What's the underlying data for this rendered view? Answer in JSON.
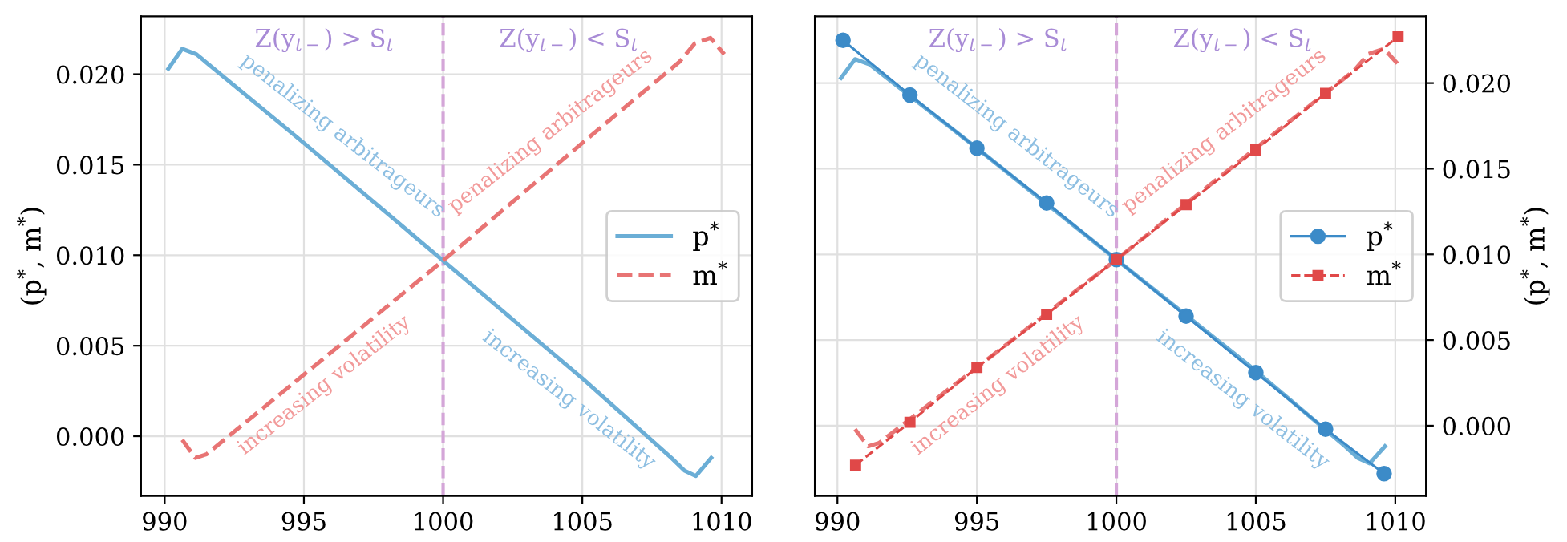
{
  "chart_data": [
    {
      "type": "line",
      "ylabel": "(p$^{*}$, m$^{*}$)",
      "xlim": [
        989.15,
        1011.1
      ],
      "ylim": [
        -0.0033,
        0.0232
      ],
      "xticks": [
        990,
        995,
        1000,
        1005,
        1010
      ],
      "yticks": [
        {
          "value": 0.0,
          "label": "0.000"
        },
        {
          "value": 0.005,
          "label": "0.005"
        },
        {
          "value": 0.01,
          "label": "0.010"
        },
        {
          "value": 0.015,
          "label": "0.015"
        },
        {
          "value": 0.02,
          "label": "0.020"
        }
      ],
      "grid": true,
      "legend": "right",
      "series": [
        {
          "name": "p$^{*}$",
          "color": "#6baed6",
          "line_style": "solid",
          "x": [
            990.13,
            990.63,
            991.14,
            995,
            1000,
            1005,
            1008.2,
            1008.67,
            1009.08,
            1009.63
          ],
          "values": [
            0.0203,
            0.0214,
            0.0211,
            0.0162,
            0.0097,
            0.0032,
            -0.0012,
            -0.0019,
            -0.0022,
            -0.0012
          ]
        },
        {
          "name": "m$^{*}$",
          "color": "#e87474",
          "line_style": "dashed",
          "x": [
            990.63,
            991.1,
            991.5,
            995,
            1000,
            1005,
            1008.5,
            1009.04,
            1009.6,
            1010.1
          ],
          "values": [
            -0.0002,
            -0.0012,
            -0.001,
            0.0034,
            0.0097,
            0.0162,
            0.0207,
            0.0217,
            0.022,
            0.0211
          ]
        }
      ],
      "ref_lines": [
        {
          "axis": "x",
          "value": 1000,
          "color": "#d4a6d8",
          "line_style": "dashed"
        }
      ],
      "annotations": [
        "Z(y$_{t−}$) > S$_{t}$",
        "Z(y$_{t−}$) < S$_{t}$",
        "penalizing arbitrageurs",
        "penalizing arbitrageurs",
        "increasing volatility",
        "increasing volatility"
      ]
    },
    {
      "type": "line",
      "ylabel": "(p$^{*}$, m$^{*}$)",
      "xlim": [
        989.19,
        1011.1
      ],
      "ylim": [
        -0.0041,
        0.0239
      ],
      "xticks": [
        990,
        995,
        1000,
        1005,
        1010
      ],
      "yticks": [
        {
          "value": 0.0,
          "label": "0.000"
        },
        {
          "value": 0.005,
          "label": "0.005"
        },
        {
          "value": 0.01,
          "label": "0.010"
        },
        {
          "value": 0.015,
          "label": "0.015"
        },
        {
          "value": 0.02,
          "label": "0.020"
        }
      ],
      "grid": true,
      "legend": "right",
      "series": [
        {
          "color": "#6baed6",
          "line_style": "solid",
          "x": [
            990.13,
            990.63,
            991.14,
            995,
            1000,
            1005,
            1008.2,
            1008.67,
            1009.08,
            1009.63
          ],
          "values": [
            0.0203,
            0.0214,
            0.0211,
            0.0162,
            0.0097,
            0.0032,
            -0.0012,
            -0.0019,
            -0.0022,
            -0.0012
          ]
        },
        {
          "color": "#e87474",
          "line_style": "dashed",
          "x": [
            990.63,
            991.1,
            991.5,
            995,
            1000,
            1005,
            1008.5,
            1009.04,
            1009.6,
            1010.1
          ],
          "values": [
            -0.0002,
            -0.0012,
            -0.001,
            0.0034,
            0.0097,
            0.0162,
            0.0207,
            0.0217,
            0.022,
            0.0211
          ]
        },
        {
          "name": "p$^{*}$",
          "color": "#3c8bc8",
          "line_style": "solid",
          "marker": "circle",
          "x": [
            990.2,
            992.6,
            995.0,
            997.5,
            1000,
            1002.5,
            1005,
            1007.5,
            1009.6
          ],
          "values": [
            0.0225,
            0.0193,
            0.0162,
            0.013,
            0.0097,
            0.0064,
            0.0031,
            -0.0002,
            -0.0028
          ]
        },
        {
          "name": "m$^{*}$",
          "color": "#e04848",
          "line_style": "dashed",
          "marker": "square",
          "x": [
            990.65,
            992.6,
            995.0,
            997.5,
            1000,
            1002.5,
            1005,
            1007.5,
            1010.1
          ],
          "values": [
            -0.0023,
            0.0002,
            0.0034,
            0.0065,
            0.0097,
            0.0129,
            0.0161,
            0.0194,
            0.0227
          ]
        }
      ],
      "ref_lines": [
        {
          "axis": "x",
          "value": 1000,
          "color": "#d4a6d8",
          "line_style": "dashed"
        }
      ],
      "annotations": [
        "Z(y$_{t−}$) > S$_{t}$",
        "Z(y$_{t−}$) < S$_{t}$",
        "penalizing arbitrageurs",
        "penalizing arbitrageurs",
        "increasing volatility",
        "increasing volatility"
      ]
    }
  ]
}
